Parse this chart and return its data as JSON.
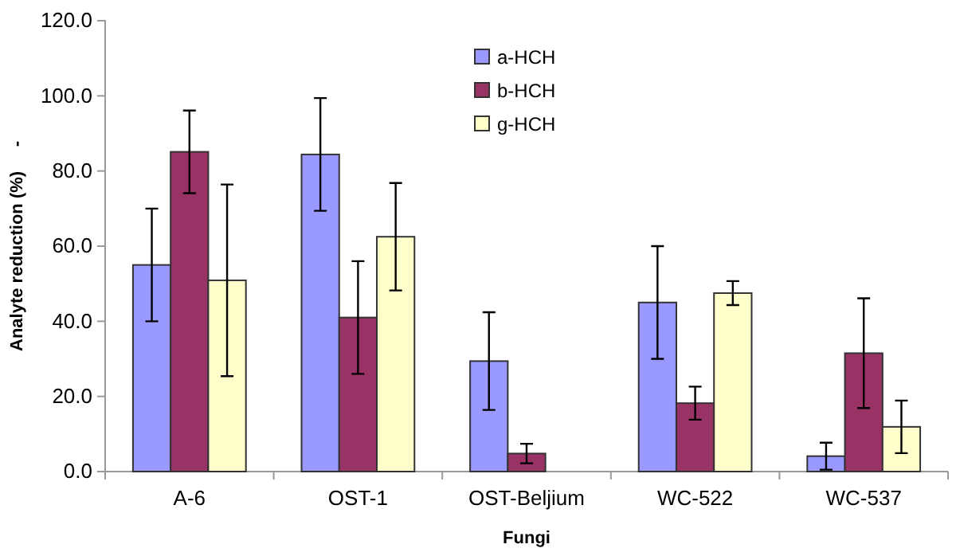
{
  "chart_data": {
    "type": "bar",
    "xlabel": "Fungi",
    "ylabel": "Analyte reduction (%)     -",
    "categories": [
      "A-6",
      "OST-1",
      "OST-Beljium",
      "WC-522",
      "WC-537"
    ],
    "series": [
      {
        "name": "a-HCH",
        "color": "#9999ff",
        "values": [
          55.0,
          84.4,
          29.4,
          45.0,
          4.1
        ],
        "errors": [
          15.0,
          15.0,
          13.0,
          15.0,
          3.6
        ]
      },
      {
        "name": "b-HCH",
        "color": "#993366",
        "values": [
          85.1,
          41.0,
          4.8,
          18.2,
          31.5
        ],
        "errors": [
          11.0,
          15.0,
          2.6,
          4.4,
          14.6
        ]
      },
      {
        "name": "g-HCH",
        "color": "#ffffcc",
        "values": [
          50.9,
          62.5,
          0,
          47.5,
          11.9
        ],
        "errors": [
          25.5,
          14.3,
          null,
          3.2,
          7.0
        ]
      }
    ],
    "ylim": [
      0,
      120
    ],
    "yticks": [
      {
        "value": 0,
        "label": "0.0"
      },
      {
        "value": 20,
        "label": "20.0"
      },
      {
        "value": 40,
        "label": "40.0"
      },
      {
        "value": 60,
        "label": "60.0"
      },
      {
        "value": 80,
        "label": "80.0"
      },
      {
        "value": 100,
        "label": "100.0"
      },
      {
        "value": 120,
        "label": "120.0"
      }
    ],
    "grid": false,
    "legend": "top"
  }
}
